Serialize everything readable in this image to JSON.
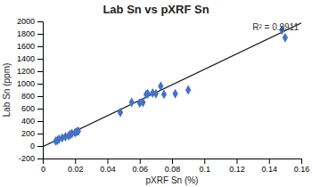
{
  "chart_data": {
    "type": "scatter",
    "title": "Lab Sn vs pXRF Sn",
    "xlabel": "pXRF Sn (%)",
    "ylabel": "Lab Sn (ppm)",
    "annotation": "R² = 0.9911",
    "xlim": [
      0,
      0.16
    ],
    "xticks": [
      0,
      0.02,
      0.04,
      0.06,
      0.08,
      0.1,
      0.12,
      0.14,
      0.16
    ],
    "ylim": [
      -200,
      2000
    ],
    "yticks": [
      -200,
      0,
      200,
      400,
      600,
      800,
      1000,
      1200,
      1400,
      1600,
      1800,
      2000
    ],
    "grid": false,
    "series": [
      {
        "type": "line",
        "color": "#1a1a1a",
        "line_style": "solid",
        "x": [
          0,
          0.16
        ],
        "values": [
          -10,
          1974
        ]
      },
      {
        "type": "scatter",
        "color": "#4472C4",
        "marker": "diamond",
        "x": [
          0.008,
          0.009,
          0.01,
          0.012,
          0.014,
          0.016,
          0.017,
          0.018,
          0.02,
          0.021,
          0.022,
          0.048,
          0.055,
          0.06,
          0.062,
          0.064,
          0.065,
          0.068,
          0.07,
          0.073,
          0.075,
          0.082,
          0.09,
          0.148,
          0.15
        ],
        "values": [
          80,
          90,
          110,
          130,
          150,
          165,
          185,
          200,
          215,
          230,
          240,
          540,
          700,
          690,
          700,
          830,
          840,
          850,
          840,
          960,
          830,
          840,
          900,
          1860,
          1740
        ]
      }
    ]
  }
}
